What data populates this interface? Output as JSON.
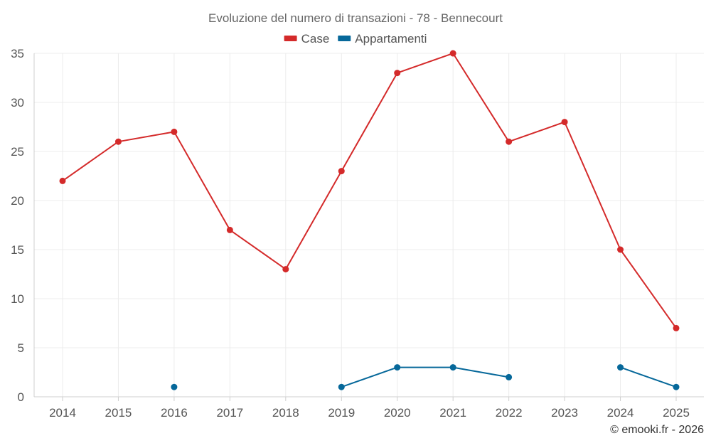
{
  "chart_data": {
    "type": "line",
    "title": "Evoluzione del numero di transazioni - 78 - Bennecourt",
    "xlabel": "",
    "ylabel": "",
    "categories": [
      "2014",
      "2015",
      "2016",
      "2017",
      "2018",
      "2019",
      "2020",
      "2021",
      "2022",
      "2023",
      "2024",
      "2025"
    ],
    "ylim": [
      0,
      35
    ],
    "yticks": [
      0,
      5,
      10,
      15,
      20,
      25,
      30,
      35
    ],
    "grid": true,
    "legend_position": "top-center",
    "series": [
      {
        "name": "Case",
        "color": "#d42a2a",
        "values": [
          22,
          26,
          27,
          17,
          13,
          23,
          33,
          35,
          26,
          28,
          15,
          7
        ]
      },
      {
        "name": "Appartamenti",
        "color": "#06689a",
        "values": [
          null,
          null,
          1,
          null,
          null,
          1,
          3,
          3,
          2,
          null,
          3,
          1
        ]
      }
    ],
    "credit": "© emooki.fr - 2026"
  }
}
